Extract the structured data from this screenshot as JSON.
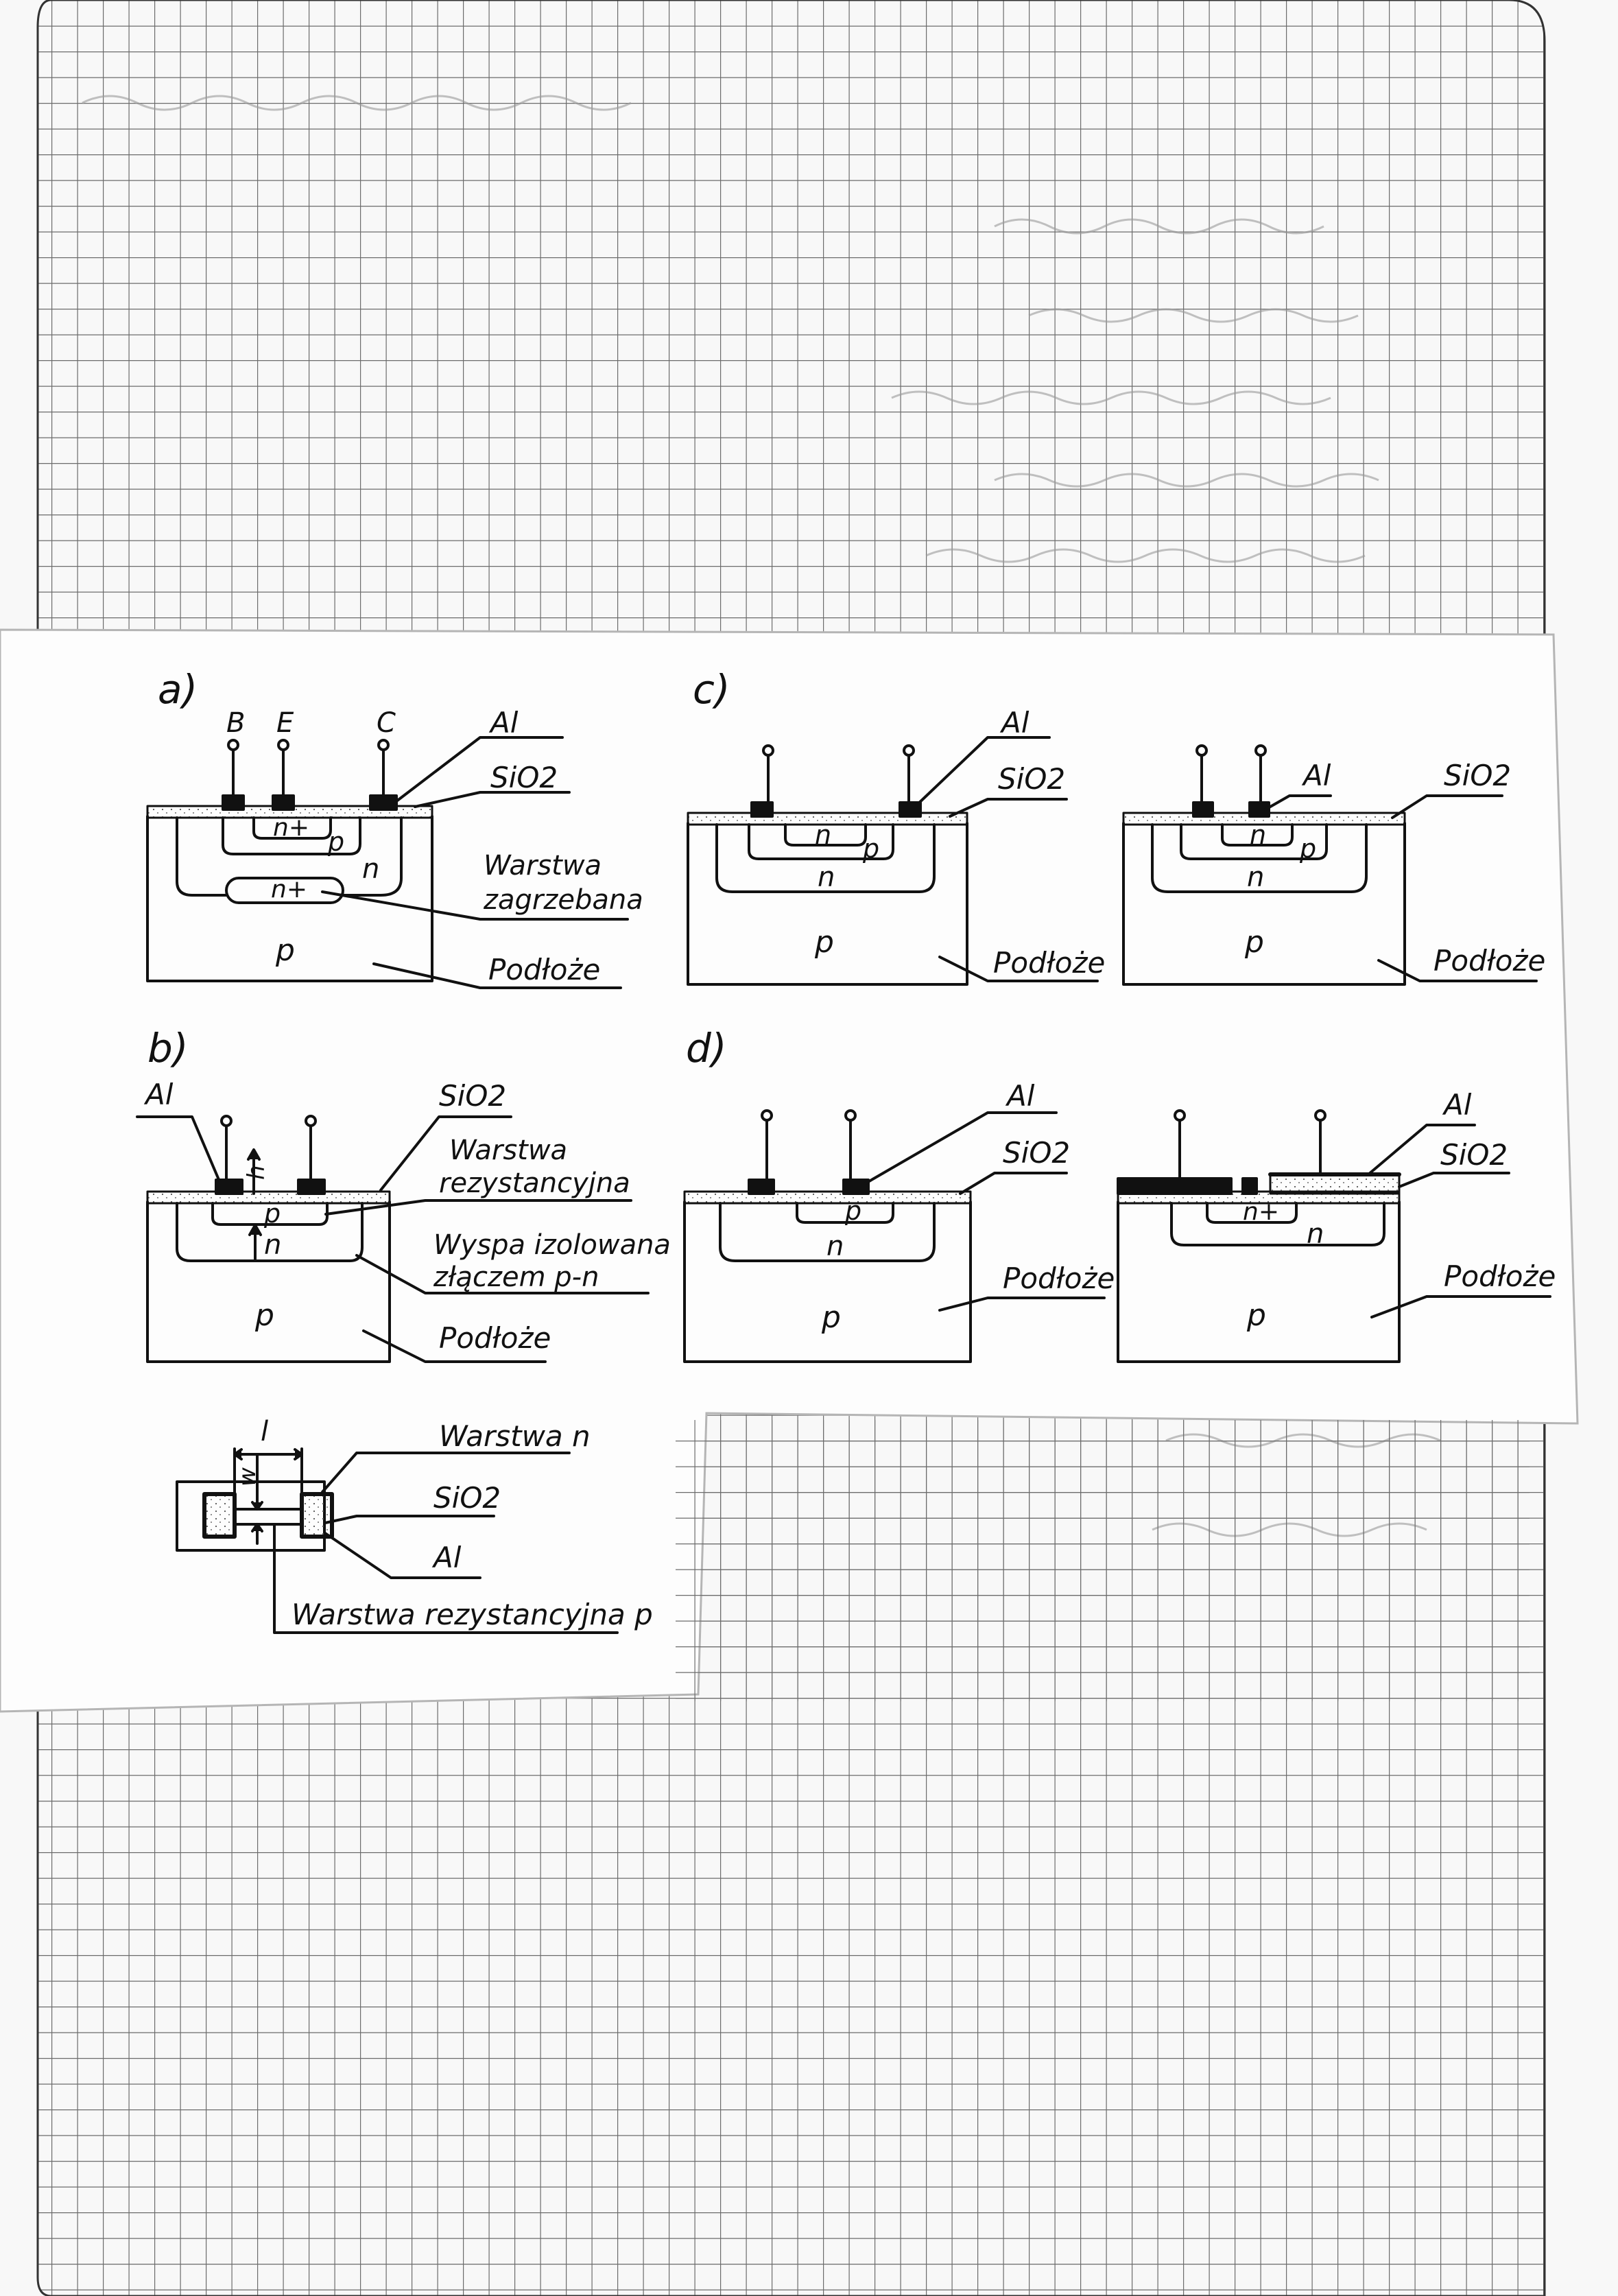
{
  "figure": {
    "panels": {
      "a": {
        "label": "a)",
        "terminals": [
          "B",
          "E",
          "C"
        ],
        "regions": {
          "emitter": "n+",
          "base": "p",
          "collector": "n",
          "buried": "n+",
          "substrate": "p"
        },
        "callouts": {
          "metal": "Al",
          "oxide": "SiO2",
          "buried_1": "Warstwa",
          "buried_2": "zagrzebana",
          "substrate": "Podłoże"
        }
      },
      "b": {
        "label": "b)",
        "dims": {
          "depth": "h"
        },
        "regions": {
          "resistor": "p",
          "island": "n",
          "substrate": "p"
        },
        "callouts": {
          "metal": "Al",
          "oxide": "SiO2",
          "resistive_1": "Warstwa",
          "resistive_2": "rezystancyjna",
          "island_1": "Wyspa izolowana",
          "island_2": "złączem p-n",
          "substrate": "Podłoże"
        }
      },
      "c": {
        "label": "c)",
        "left": {
          "regions": {
            "inner": "n",
            "middle": "p",
            "outer": "n",
            "substrate": "p"
          },
          "callouts": {
            "metal": "Al",
            "oxide": "SiO2",
            "substrate": "Podłoże"
          }
        },
        "right": {
          "regions": {
            "inner": "n",
            "middle": "p",
            "outer": "n",
            "substrate": "p"
          },
          "callouts": {
            "metal": "Al",
            "oxide": "SiO2",
            "substrate": "Podłoże"
          }
        }
      },
      "d": {
        "label": "d)",
        "left": {
          "regions": {
            "inner": "p",
            "outer": "n",
            "substrate": "p"
          },
          "callouts": {
            "metal": "Al",
            "oxide": "SiO2",
            "substrate": "Podłoże"
          }
        },
        "right": {
          "regions": {
            "inner": "n+",
            "outer": "n",
            "substrate": "p"
          },
          "callouts": {
            "metal": "Al",
            "oxide": "SiO2",
            "substrate": "Podłoże"
          }
        }
      },
      "top_view": {
        "dims": {
          "length": "l",
          "width": "w"
        },
        "callouts": {
          "layer_n": "Warstwa n",
          "oxide": "SiO2",
          "metal": "Al",
          "resistive": "Warstwa rezystancyjna p"
        }
      }
    }
  }
}
